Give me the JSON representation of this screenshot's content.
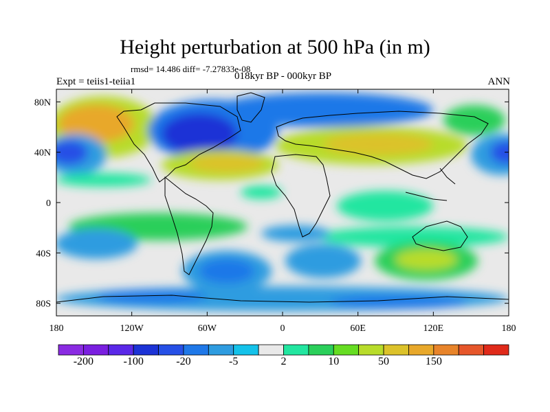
{
  "title": "Height perturbation at 500 hPa (in m)",
  "stats": "rmsd= 14.486 diff= -7.27833e-08",
  "period": "018kyr BP - 000kyr BP",
  "experiment": "Expt = teiis1-teiia1",
  "season": "ANN",
  "map": {
    "projection": "cylindrical-equidistant",
    "lon_range": [
      -180,
      180
    ],
    "lat_range": [
      -90,
      90
    ],
    "x_ticks": [
      "180",
      "120W",
      "60W",
      "0",
      "60E",
      "120E",
      "180"
    ],
    "y_ticks": [
      "80N",
      "40N",
      "0",
      "40S",
      "80S"
    ]
  },
  "colorbar": {
    "colors": [
      "#8a2be2",
      "#7a1fe0",
      "#5a28e8",
      "#1c33d6",
      "#2650e6",
      "#1f78e8",
      "#2e9ce0",
      "#14c2ea",
      "#e9e9e9",
      "#22e6a0",
      "#2acf5a",
      "#66dd22",
      "#b8dc2a",
      "#dcc22a",
      "#e8a82a",
      "#e8842a",
      "#e6562a",
      "#e02a1a"
    ],
    "labels": [
      "-200",
      "-100",
      "-20",
      "-5",
      "2",
      "10",
      "50",
      "150"
    ]
  }
}
